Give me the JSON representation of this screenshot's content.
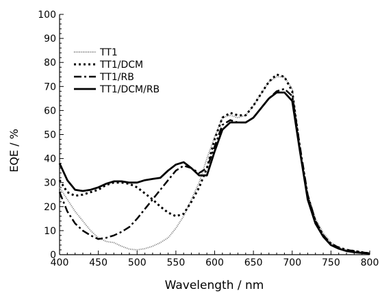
{
  "chart_data": {
    "type": "line",
    "title": "",
    "xlabel": "Wavelength / nm",
    "ylabel": "EQE / %",
    "xlim": [
      400,
      800
    ],
    "ylim": [
      0,
      100
    ],
    "xticks": [
      400,
      450,
      500,
      550,
      600,
      650,
      700,
      750,
      800
    ],
    "yticks": [
      0,
      10,
      20,
      30,
      40,
      50,
      60,
      70,
      80,
      90,
      100
    ],
    "grid": false,
    "legend_position": "top-left",
    "series": [
      {
        "name": "TT1",
        "color": "#888888",
        "dash": "dotted-fine",
        "x": [
          400,
          410,
          420,
          430,
          440,
          450,
          460,
          470,
          480,
          490,
          500,
          510,
          520,
          530,
          540,
          550,
          560,
          570,
          580,
          590,
          600,
          610,
          620,
          630,
          640,
          650,
          660,
          670,
          680,
          690,
          700,
          710,
          720,
          730,
          740,
          750,
          760,
          770,
          780,
          790,
          800
        ],
        "y": [
          28,
          23,
          18,
          14,
          10,
          7,
          5.5,
          5,
          3.5,
          2.3,
          2,
          2.5,
          3.5,
          5,
          7,
          11,
          16,
          23,
          30,
          40,
          49,
          57,
          58,
          57,
          58,
          62,
          67,
          72,
          74,
          74,
          69,
          45,
          25,
          15,
          9,
          5,
          3,
          2,
          1.5,
          1,
          0.5
        ]
      },
      {
        "name": "TT1/DCM",
        "color": "#000000",
        "dash": "dotted",
        "x": [
          400,
          410,
          420,
          430,
          440,
          450,
          460,
          470,
          480,
          490,
          500,
          510,
          520,
          530,
          540,
          550,
          560,
          570,
          580,
          590,
          600,
          610,
          620,
          630,
          640,
          650,
          660,
          670,
          680,
          690,
          700,
          710,
          720,
          730,
          740,
          750,
          760,
          770,
          780,
          790,
          800
        ],
        "y": [
          31,
          26,
          24.5,
          25,
          26,
          27,
          29,
          30,
          30,
          29.5,
          28,
          25.5,
          23,
          20,
          17.5,
          16,
          17,
          22,
          28,
          36,
          48,
          57,
          59,
          58,
          58,
          62,
          67,
          72,
          75,
          74,
          68,
          44,
          24,
          14,
          8,
          4.5,
          3,
          2,
          1.5,
          1,
          0.5
        ]
      },
      {
        "name": "TT1/RB",
        "color": "#000000",
        "dash": "dash-dot",
        "x": [
          400,
          410,
          420,
          430,
          440,
          450,
          460,
          470,
          480,
          490,
          500,
          510,
          520,
          530,
          540,
          550,
          560,
          570,
          580,
          590,
          600,
          610,
          620,
          630,
          640,
          650,
          660,
          670,
          680,
          690,
          700,
          710,
          720,
          730,
          740,
          750,
          760,
          770,
          780,
          790,
          800
        ],
        "y": [
          26,
          18,
          13,
          10,
          8,
          6.5,
          7,
          8,
          9.5,
          11.5,
          15,
          19,
          23,
          27,
          31,
          35,
          37,
          36,
          34,
          36,
          45,
          54,
          56,
          55,
          55,
          57,
          61,
          65,
          68,
          69,
          66,
          45,
          25,
          14,
          8,
          4.5,
          3,
          2,
          1.5,
          1,
          0.5
        ]
      },
      {
        "name": "TT1/DCM/RB",
        "color": "#000000",
        "dash": "solid",
        "x": [
          400,
          410,
          420,
          430,
          440,
          450,
          460,
          470,
          480,
          490,
          500,
          510,
          520,
          530,
          540,
          550,
          560,
          570,
          580,
          590,
          600,
          610,
          620,
          630,
          640,
          650,
          660,
          670,
          680,
          690,
          700,
          710,
          720,
          730,
          740,
          750,
          760,
          770,
          780,
          790,
          800
        ],
        "y": [
          38,
          31,
          27,
          26.5,
          27,
          28,
          29.5,
          30.5,
          30.5,
          30,
          30,
          31,
          31.5,
          32,
          35,
          37.5,
          38.5,
          36,
          33,
          33,
          43,
          52,
          55,
          55,
          55,
          57,
          61,
          65,
          67.5,
          67.5,
          64,
          43,
          23,
          13,
          7.5,
          4,
          2.5,
          1.5,
          1,
          0.7,
          0.5
        ]
      }
    ]
  }
}
